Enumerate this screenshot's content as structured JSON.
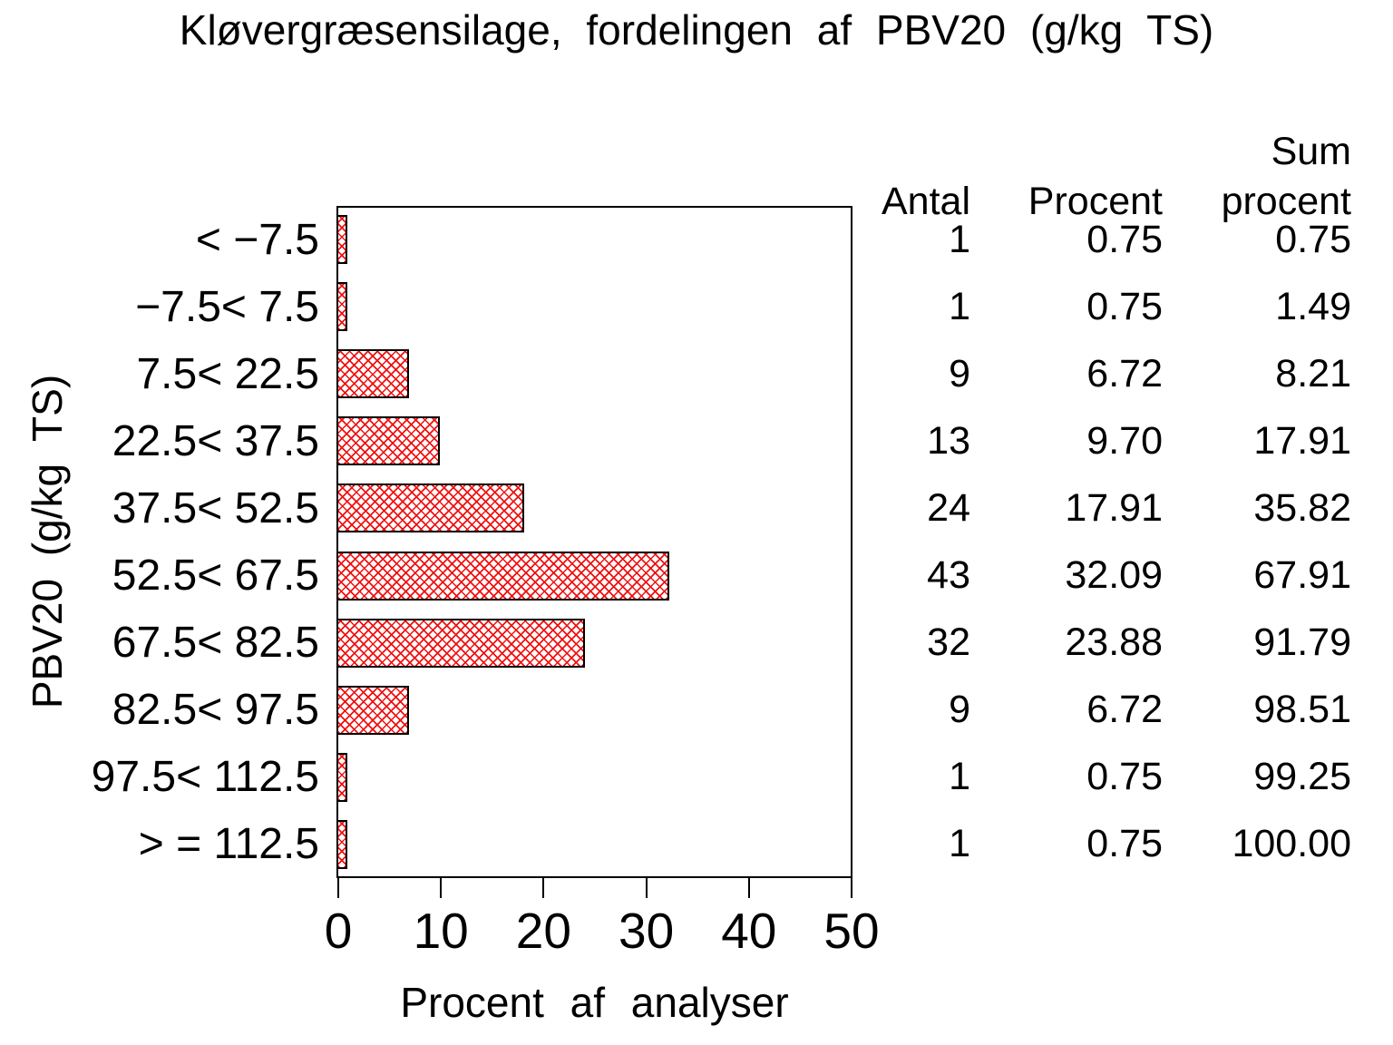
{
  "chart_data": {
    "type": "bar",
    "orientation": "horizontal",
    "title": "Kløvergræsensilage, fordelingen af PBV20 (g/kg TS)",
    "xlabel": "Procent af analyser",
    "ylabel": "PBV20 (g/kg TS)",
    "xlim": [
      0,
      50
    ],
    "xticks": [
      "0",
      "10",
      "20",
      "30",
      "40",
      "50"
    ],
    "grid": false,
    "legend": "none",
    "bar_style": "red diagonal crosshatch with black outline",
    "bar_color": "#f01010",
    "bar_border_color": "#000000",
    "categories": [
      "< −7.5",
      "−7.5< 7.5",
      "7.5< 22.5",
      "22.5< 37.5",
      "37.5< 52.5",
      "52.5< 67.5",
      "67.5< 82.5",
      "82.5< 97.5",
      "97.5< 112.5",
      "> = 112.5"
    ],
    "values": [
      0.75,
      0.75,
      6.72,
      9.7,
      17.91,
      32.09,
      23.88,
      6.72,
      0.75,
      0.75
    ]
  },
  "table": {
    "header_antal": "Antal",
    "header_procent": "Procent",
    "header_sum_line1": "Sum",
    "header_sum_line2": "procent",
    "rows": [
      {
        "antal": "1",
        "procent": "0.75",
        "sum": "0.75"
      },
      {
        "antal": "1",
        "procent": "0.75",
        "sum": "1.49"
      },
      {
        "antal": "9",
        "procent": "6.72",
        "sum": "8.21"
      },
      {
        "antal": "13",
        "procent": "9.70",
        "sum": "17.91"
      },
      {
        "antal": "24",
        "procent": "17.91",
        "sum": "35.82"
      },
      {
        "antal": "43",
        "procent": "32.09",
        "sum": "67.91"
      },
      {
        "antal": "32",
        "procent": "23.88",
        "sum": "91.79"
      },
      {
        "antal": "9",
        "procent": "6.72",
        "sum": "98.51"
      },
      {
        "antal": "1",
        "procent": "0.75",
        "sum": "99.25"
      },
      {
        "antal": "1",
        "procent": "0.75",
        "sum": "100.00"
      }
    ]
  }
}
